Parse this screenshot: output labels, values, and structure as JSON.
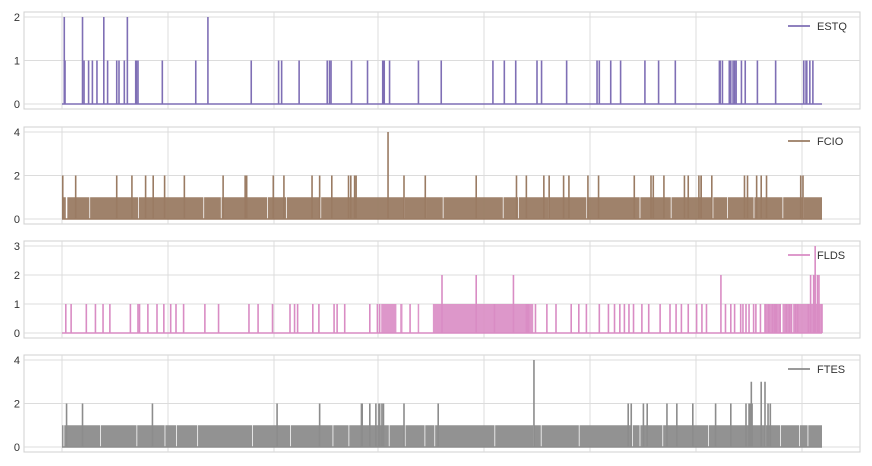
{
  "chart_data": [
    {
      "type": "line",
      "series": [
        {
          "name": "ESTQ",
          "color": "#7f6fb5"
        }
      ],
      "ylim": [
        0,
        2
      ],
      "yticks": [
        0,
        1,
        2
      ],
      "ytick_labels": [
        "0",
        "1",
        "2"
      ],
      "legend_position": "top-right",
      "grid": true,
      "x_range": [
        0,
        1000
      ],
      "events": [
        [
          3,
          2
        ],
        [
          4,
          1
        ],
        [
          27,
          2
        ],
        [
          29,
          1
        ],
        [
          35,
          1
        ],
        [
          40,
          1
        ],
        [
          46,
          1
        ],
        [
          55,
          2
        ],
        [
          60,
          1
        ],
        [
          72,
          1
        ],
        [
          75,
          1
        ],
        [
          82,
          1
        ],
        [
          86,
          2
        ],
        [
          97,
          1
        ],
        [
          98,
          1
        ],
        [
          100,
          1
        ],
        [
          132,
          1
        ],
        [
          176,
          1
        ],
        [
          192,
          2
        ],
        [
          249,
          1
        ],
        [
          285,
          1
        ],
        [
          289,
          1
        ],
        [
          312,
          1
        ],
        [
          349,
          1
        ],
        [
          352,
          1
        ],
        [
          354,
          1
        ],
        [
          381,
          1
        ],
        [
          402,
          1
        ],
        [
          422,
          1
        ],
        [
          424,
          1
        ],
        [
          431,
          1
        ],
        [
          469,
          1
        ],
        [
          499,
          1
        ],
        [
          567,
          1
        ],
        [
          582,
          1
        ],
        [
          597,
          1
        ],
        [
          625,
          1
        ],
        [
          631,
          1
        ],
        [
          664,
          1
        ],
        [
          704,
          1
        ],
        [
          707,
          1
        ],
        [
          722,
          1
        ],
        [
          735,
          1
        ],
        [
          767,
          1
        ],
        [
          785,
          1
        ],
        [
          807,
          1
        ],
        [
          865,
          1
        ],
        [
          866,
          1
        ],
        [
          869,
          1
        ],
        [
          878,
          1
        ],
        [
          879,
          1
        ],
        [
          880,
          1
        ],
        [
          883,
          1
        ],
        [
          885,
          1
        ],
        [
          887,
          1
        ],
        [
          894,
          1
        ],
        [
          899,
          1
        ],
        [
          915,
          1
        ],
        [
          939,
          1
        ],
        [
          976,
          1
        ],
        [
          979,
          1
        ],
        [
          980,
          1
        ],
        [
          984,
          1
        ],
        [
          988,
          1
        ]
      ]
    },
    {
      "type": "line",
      "series": [
        {
          "name": "FCIO",
          "color": "#9a7b63"
        }
      ],
      "ylim": [
        0,
        4
      ],
      "yticks": [
        0,
        2,
        4
      ],
      "ytick_labels": [
        "0",
        "2",
        "4"
      ],
      "legend_position": "top-right",
      "grid": true,
      "x_range": [
        0,
        1000
      ],
      "baseline_value": 1,
      "gaps": [
        [
          5,
          7
        ],
        [
          36,
          37
        ],
        [
          100,
          101
        ],
        [
          186,
          187
        ],
        [
          209,
          210
        ],
        [
          270,
          271
        ],
        [
          295,
          296
        ],
        [
          340,
          341
        ],
        [
          450,
          451
        ],
        [
          478,
          479
        ],
        [
          501,
          502
        ],
        [
          580,
          581
        ],
        [
          600,
          601
        ],
        [
          640,
          641
        ],
        [
          690,
          691
        ],
        [
          760,
          761
        ],
        [
          801,
          802
        ],
        [
          856,
          857
        ],
        [
          875,
          876
        ],
        [
          910,
          911
        ],
        [
          948,
          949
        ],
        [
          975,
          976
        ]
      ],
      "events": [
        [
          1,
          2
        ],
        [
          18,
          2
        ],
        [
          72,
          2
        ],
        [
          92,
          2
        ],
        [
          110,
          2
        ],
        [
          120,
          2
        ],
        [
          135,
          2
        ],
        [
          161,
          2
        ],
        [
          212,
          2
        ],
        [
          241,
          2
        ],
        [
          243,
          2
        ],
        [
          278,
          2
        ],
        [
          292,
          2
        ],
        [
          329,
          2
        ],
        [
          339,
          2
        ],
        [
          355,
          2
        ],
        [
          377,
          2
        ],
        [
          380,
          2
        ],
        [
          385,
          2
        ],
        [
          387,
          2
        ],
        [
          429,
          4
        ],
        [
          450,
          2
        ],
        [
          478,
          2
        ],
        [
          545,
          2
        ],
        [
          598,
          2
        ],
        [
          611,
          2
        ],
        [
          634,
          2
        ],
        [
          641,
          2
        ],
        [
          660,
          2
        ],
        [
          667,
          2
        ],
        [
          692,
          2
        ],
        [
          706,
          2
        ],
        [
          753,
          2
        ],
        [
          775,
          2
        ],
        [
          778,
          2
        ],
        [
          792,
          2
        ],
        [
          819,
          2
        ],
        [
          824,
          2
        ],
        [
          838,
          2
        ],
        [
          841,
          2
        ],
        [
          841,
          2
        ],
        [
          855,
          2
        ],
        [
          898,
          2
        ],
        [
          902,
          2
        ],
        [
          914,
          2
        ],
        [
          920,
          2
        ],
        [
          927,
          2
        ],
        [
          972,
          2
        ],
        [
          975,
          2
        ]
      ]
    },
    {
      "type": "line",
      "series": [
        {
          "name": "FLDS",
          "color": "#d98cc4"
        }
      ],
      "ylim": [
        0,
        3
      ],
      "yticks": [
        0,
        1,
        2,
        3
      ],
      "ytick_labels": [
        "0",
        "1",
        "2",
        "3"
      ],
      "legend_position": "top-right",
      "grid": true,
      "x_range": [
        0,
        1000
      ],
      "dense_regions": [
        [
          420,
          440
        ],
        [
          445,
          448
        ],
        [
          468,
          470
        ],
        [
          488,
          615
        ],
        [
          610,
          620
        ],
        [
          925,
          945
        ],
        [
          948,
          960
        ],
        [
          962,
          1000
        ]
      ],
      "events": [
        [
          5,
          1
        ],
        [
          12,
          1
        ],
        [
          32,
          1
        ],
        [
          44,
          1
        ],
        [
          54,
          1
        ],
        [
          63,
          1
        ],
        [
          90,
          1
        ],
        [
          100,
          1
        ],
        [
          102,
          1
        ],
        [
          113,
          1
        ],
        [
          125,
          1
        ],
        [
          134,
          1
        ],
        [
          143,
          1
        ],
        [
          150,
          1
        ],
        [
          160,
          1
        ],
        [
          188,
          1
        ],
        [
          206,
          1
        ],
        [
          246,
          1
        ],
        [
          258,
          1
        ],
        [
          277,
          1
        ],
        [
          300,
          1
        ],
        [
          306,
          1
        ],
        [
          310,
          1
        ],
        [
          330,
          1
        ],
        [
          338,
          1
        ],
        [
          358,
          1
        ],
        [
          362,
          1
        ],
        [
          372,
          1
        ],
        [
          405,
          1
        ],
        [
          415,
          1
        ],
        [
          418,
          1
        ],
        [
          458,
          1
        ],
        [
          500,
          2
        ],
        [
          545,
          2
        ],
        [
          569,
          1
        ],
        [
          594,
          2
        ],
        [
          623,
          1
        ],
        [
          638,
          1
        ],
        [
          650,
          1
        ],
        [
          670,
          1
        ],
        [
          680,
          1
        ],
        [
          690,
          1
        ],
        [
          707,
          1
        ],
        [
          719,
          1
        ],
        [
          727,
          1
        ],
        [
          734,
          1
        ],
        [
          740,
          1
        ],
        [
          746,
          1
        ],
        [
          752,
          1
        ],
        [
          763,
          1
        ],
        [
          772,
          1
        ],
        [
          787,
          1
        ],
        [
          800,
          1
        ],
        [
          808,
          1
        ],
        [
          815,
          1
        ],
        [
          824,
          1
        ],
        [
          835,
          1
        ],
        [
          842,
          1
        ],
        [
          848,
          1
        ],
        [
          867,
          2
        ],
        [
          873,
          1
        ],
        [
          880,
          1
        ],
        [
          885,
          1
        ],
        [
          893,
          1
        ],
        [
          896,
          1
        ],
        [
          900,
          1
        ],
        [
          904,
          1
        ],
        [
          910,
          1
        ],
        [
          913,
          1
        ],
        [
          919,
          1
        ],
        [
          925,
          1
        ],
        [
          930,
          1
        ],
        [
          935,
          1
        ],
        [
          938,
          1
        ],
        [
          940,
          1
        ],
        [
          945,
          1
        ],
        [
          953,
          1
        ],
        [
          957,
          1
        ],
        [
          960,
          1
        ],
        [
          965,
          1
        ],
        [
          968,
          1
        ],
        [
          982,
          1
        ],
        [
          985,
          2
        ],
        [
          989,
          2
        ],
        [
          991,
          3
        ],
        [
          994,
          2
        ],
        [
          996,
          2
        ],
        [
          1000,
          1
        ]
      ]
    },
    {
      "type": "line",
      "series": [
        {
          "name": "FTES",
          "color": "#8c8c8c"
        }
      ],
      "ylim": [
        0,
        4
      ],
      "yticks": [
        0,
        2,
        4
      ],
      "ytick_labels": [
        "0",
        "2",
        "4"
      ],
      "legend_position": "top-right",
      "grid": true,
      "x_range": [
        0,
        1000
      ],
      "baseline_value": 1,
      "gaps": [
        [
          2,
          3
        ],
        [
          50,
          51
        ],
        [
          98,
          99
        ],
        [
          135,
          136
        ],
        [
          150,
          151
        ],
        [
          178,
          179
        ],
        [
          250,
          251
        ],
        [
          300,
          301
        ],
        [
          356,
          357
        ],
        [
          377,
          378
        ],
        [
          430,
          431
        ],
        [
          451,
          452
        ],
        [
          477,
          478
        ],
        [
          490,
          491
        ],
        [
          569,
          570
        ],
        [
          620,
          621
        ],
        [
          630,
          631
        ],
        [
          680,
          681
        ],
        [
          750,
          751
        ],
        [
          760,
          761
        ],
        [
          790,
          791
        ],
        [
          850,
          851
        ],
        [
          925,
          926
        ],
        [
          945,
          946
        ],
        [
          970,
          971
        ],
        [
          981,
          982
        ]
      ],
      "events": [
        [
          6,
          2
        ],
        [
          27,
          2
        ],
        [
          119,
          2
        ],
        [
          283,
          2
        ],
        [
          339,
          2
        ],
        [
          394,
          2
        ],
        [
          395,
          2
        ],
        [
          405,
          2
        ],
        [
          413,
          2
        ],
        [
          417,
          2
        ],
        [
          418,
          2
        ],
        [
          421,
          2
        ],
        [
          423,
          2
        ],
        [
          450,
          2
        ],
        [
          495,
          2
        ],
        [
          621,
          4
        ],
        [
          745,
          2
        ],
        [
          749,
          2
        ],
        [
          765,
          2
        ],
        [
          770,
          2
        ],
        [
          796,
          2
        ],
        [
          809,
          2
        ],
        [
          830,
          2
        ],
        [
          860,
          2
        ],
        [
          880,
          2
        ],
        [
          900,
          2
        ],
        [
          904,
          2
        ],
        [
          905,
          2
        ],
        [
          907,
          3
        ],
        [
          908,
          2
        ],
        [
          920,
          3
        ],
        [
          925,
          3
        ],
        [
          929,
          2
        ],
        [
          932,
          2
        ]
      ]
    }
  ]
}
